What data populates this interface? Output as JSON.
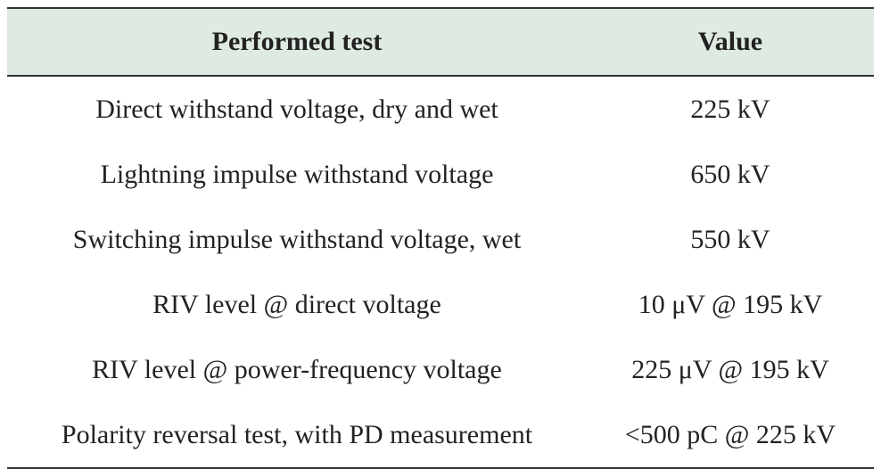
{
  "table": {
    "header": [
      "Performed test",
      "Value"
    ],
    "rows": [
      [
        "Direct withstand voltage, dry and wet",
        "225 kV"
      ],
      [
        "Lightning impulse withstand voltage",
        "650 kV"
      ],
      [
        "Switching impulse withstand voltage, wet",
        "550 kV"
      ],
      [
        "RIV level @ direct voltage",
        "10 μV @ 195 kV"
      ],
      [
        "RIV level @ power-frequency voltage",
        "225 μV @ 195 kV"
      ],
      [
        "Polarity reversal test, with PD measurement",
        "<500 pC @ 225 kV"
      ]
    ]
  }
}
